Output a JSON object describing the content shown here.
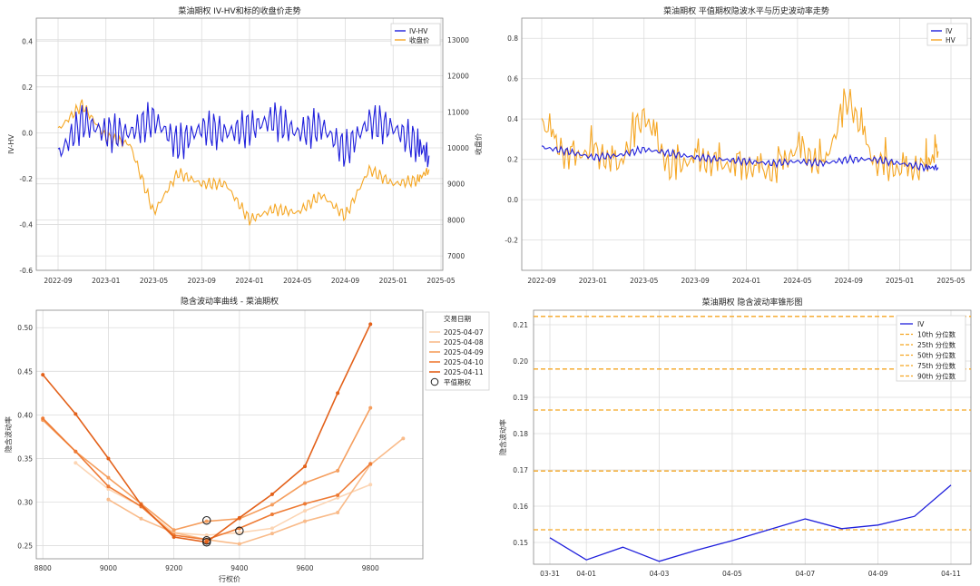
{
  "chart_data": [
    {
      "type": "line",
      "title": "菜油期权 IV-HV和标的收盘价走势",
      "xlabel": "",
      "ylabel": "IV-HV",
      "y2label": "收盘价",
      "x_ticks": [
        "2022-09",
        "2023-01",
        "2023-05",
        "2023-09",
        "2024-01",
        "2024-05",
        "2024-09",
        "2025-01",
        "2025-05"
      ],
      "ylim": [
        -0.6,
        0.5
      ],
      "y_ticks": [
        "0.4",
        "0.2",
        "0.0",
        "-0.2",
        "-0.4",
        "-0.6"
      ],
      "y2lim": [
        6600,
        13600
      ],
      "y2_ticks": [
        "13000",
        "12000",
        "11000",
        "10000",
        "9000",
        "8000",
        "7000"
      ],
      "legend": [
        "IV-HV",
        "收盘价"
      ],
      "legend_loc": "top-right",
      "colors": {
        "ivhv": "#1f1fdc",
        "close": "#f5a623"
      },
      "series": [
        {
          "name": "IV-HV",
          "x": [
            "2022-09",
            "2022-11",
            "2023-01",
            "2023-03",
            "2023-05",
            "2023-07",
            "2023-09",
            "2023-11",
            "2024-01",
            "2024-03",
            "2024-05",
            "2024-07",
            "2024-09",
            "2024-11",
            "2025-01",
            "2025-03",
            "2025-04"
          ],
          "values": [
            -0.1,
            0.05,
            0.0,
            0.0,
            0.06,
            -0.05,
            0.02,
            0.0,
            0.02,
            0.06,
            0.0,
            0.03,
            -0.08,
            0.05,
            0.02,
            -0.05,
            -0.1
          ]
        },
        {
          "name": "收盘价",
          "x": [
            "2022-09",
            "2022-11",
            "2023-01",
            "2023-03",
            "2023-05",
            "2023-07",
            "2023-09",
            "2023-11",
            "2024-01",
            "2024-03",
            "2024-05",
            "2024-07",
            "2024-09",
            "2024-11",
            "2025-01",
            "2025-03",
            "2025-04"
          ],
          "values": [
            10500,
            11200,
            10300,
            10100,
            8200,
            9300,
            9000,
            9000,
            8000,
            8300,
            8200,
            8700,
            8100,
            9400,
            9000,
            9100,
            9400
          ]
        }
      ]
    },
    {
      "type": "line",
      "title": "菜油期权 平值期权隐波水平与历史波动率走势",
      "xlabel": "",
      "ylabel": "",
      "x_ticks": [
        "2022-09",
        "2023-01",
        "2023-05",
        "2023-09",
        "2024-01",
        "2024-05",
        "2024-09",
        "2025-01",
        "2025-05"
      ],
      "ylim": [
        -0.35,
        0.9
      ],
      "y_ticks": [
        "0.8",
        "0.6",
        "0.4",
        "0.2",
        "0.0",
        "-0.2"
      ],
      "legend": [
        "IV",
        "HV"
      ],
      "legend_loc": "top-right",
      "colors": {
        "iv": "#1f1fdc",
        "hv": "#f5a623"
      },
      "series": [
        {
          "name": "IV",
          "x": [
            "2022-09",
            "2022-11",
            "2023-01",
            "2023-03",
            "2023-05",
            "2023-07",
            "2023-09",
            "2023-11",
            "2024-01",
            "2024-03",
            "2024-05",
            "2024-07",
            "2024-09",
            "2024-11",
            "2025-01",
            "2025-03",
            "2025-04"
          ],
          "values": [
            0.26,
            0.24,
            0.21,
            0.22,
            0.25,
            0.23,
            0.21,
            0.2,
            0.19,
            0.18,
            0.19,
            0.18,
            0.2,
            0.2,
            0.18,
            0.16,
            0.16
          ]
        },
        {
          "name": "HV",
          "x": [
            "2022-09",
            "2022-11",
            "2023-01",
            "2023-03",
            "2023-05",
            "2023-07",
            "2023-09",
            "2023-11",
            "2024-01",
            "2024-03",
            "2024-05",
            "2024-07",
            "2024-09",
            "2024-11",
            "2025-01",
            "2025-03",
            "2025-04"
          ],
          "values": [
            0.38,
            0.2,
            0.24,
            0.16,
            0.42,
            0.15,
            0.2,
            0.17,
            0.16,
            0.13,
            0.25,
            0.16,
            0.5,
            0.18,
            0.14,
            0.16,
            0.24
          ]
        }
      ]
    },
    {
      "type": "line",
      "title": "隐含波动率曲线 - 菜油期权",
      "xlabel": "行权价",
      "ylabel": "隐含波动率",
      "x_ticks": [
        "8800",
        "9000",
        "9200",
        "9400",
        "9600",
        "9800"
      ],
      "xlim": [
        8780,
        9960
      ],
      "ylim": [
        0.235,
        0.52
      ],
      "y_ticks": [
        "0.50",
        "0.45",
        "0.40",
        "0.35",
        "0.30",
        "0.25"
      ],
      "legend_title": "交易日期",
      "legend": [
        "2025-04-07",
        "2025-04-08",
        "2025-04-09",
        "2025-04-10",
        "2025-04-11",
        "平值期权"
      ],
      "legend_loc": "top-right",
      "strikes": [
        8800,
        8900,
        9000,
        9100,
        9200,
        9300,
        9400,
        9500,
        9600,
        9700,
        9800,
        9900
      ],
      "series": [
        {
          "name": "2025-04-07",
          "color": "#fcd5b4",
          "x": [
            8900,
            9000,
            9100,
            9200,
            9300,
            9400,
            9500,
            9600,
            9700,
            9800
          ],
          "values": [
            0.345,
            0.315,
            0.295,
            0.265,
            0.262,
            0.265,
            0.27,
            0.29,
            0.305,
            0.32
          ]
        },
        {
          "name": "2025-04-08",
          "color": "#f9bb8a",
          "x": [
            9000,
            9100,
            9200,
            9300,
            9400,
            9500,
            9600,
            9700,
            9800,
            9900
          ],
          "values": [
            0.303,
            0.281,
            0.265,
            0.257,
            0.252,
            0.264,
            0.278,
            0.288,
            0.343,
            0.373
          ]
        },
        {
          "name": "2025-04-09",
          "color": "#f59e5e",
          "x": [
            8800,
            8900,
            9000,
            9100,
            9200,
            9300,
            9400,
            9500,
            9600,
            9700,
            9800
          ],
          "values": [
            0.394,
            0.358,
            0.328,
            0.298,
            0.268,
            0.278,
            0.281,
            0.297,
            0.322,
            0.336,
            0.408
          ]
        },
        {
          "name": "2025-04-10",
          "color": "#ee7b35",
          "x": [
            8800,
            8900,
            9000,
            9100,
            9200,
            9300,
            9400,
            9500,
            9600,
            9700,
            9800
          ],
          "values": [
            0.396,
            0.358,
            0.318,
            0.295,
            0.262,
            0.257,
            0.27,
            0.286,
            0.298,
            0.308,
            0.344
          ]
        },
        {
          "name": "2025-04-11",
          "color": "#e3611a",
          "x": [
            8800,
            8900,
            9000,
            9100,
            9200,
            9300,
            9400,
            9500,
            9600,
            9700,
            9800
          ],
          "values": [
            0.446,
            0.401,
            0.35,
            0.297,
            0.26,
            0.254,
            0.282,
            0.309,
            0.341,
            0.425,
            0.504
          ]
        }
      ],
      "atm_points": [
        {
          "x": 9300,
          "y": 0.279
        },
        {
          "x": 9400,
          "y": 0.267
        },
        {
          "x": 9300,
          "y": 0.256
        },
        {
          "x": 9300,
          "y": 0.254
        }
      ]
    },
    {
      "type": "line",
      "title": "菜油期权 隐含波动率锥形图",
      "xlabel": "",
      "ylabel": "隐含波动率",
      "x_ticks": [
        "03-31",
        "04-01",
        "04-03",
        "04-05",
        "04-07",
        "04-09",
        "04-11"
      ],
      "ylim": [
        0.144,
        0.214
      ],
      "y_ticks": [
        "0.21",
        "0.20",
        "0.19",
        "0.18",
        "0.17",
        "0.16",
        "0.15"
      ],
      "legend": [
        "IV",
        "10th 分位数",
        "25th 分位数",
        "50th 分位数",
        "75th 分位数",
        "90th 分位数"
      ],
      "legend_loc": "top-right",
      "percentiles": [
        0.1535,
        0.1697,
        0.1865,
        0.1978,
        0.2123
      ],
      "colors": {
        "iv": "#1f1fdc",
        "pct": "#f5a623"
      },
      "series": [
        {
          "name": "IV",
          "x": [
            "03-31",
            "04-01",
            "04-02",
            "04-03",
            "04-04",
            "04-05",
            "04-06",
            "04-07",
            "04-08",
            "04-09",
            "04-10",
            "04-11"
          ],
          "values": [
            0.1513,
            0.1452,
            0.1487,
            0.1448,
            0.1478,
            0.1505,
            0.1535,
            0.1565,
            0.1538,
            0.1548,
            0.1572,
            0.1658
          ]
        }
      ]
    }
  ]
}
